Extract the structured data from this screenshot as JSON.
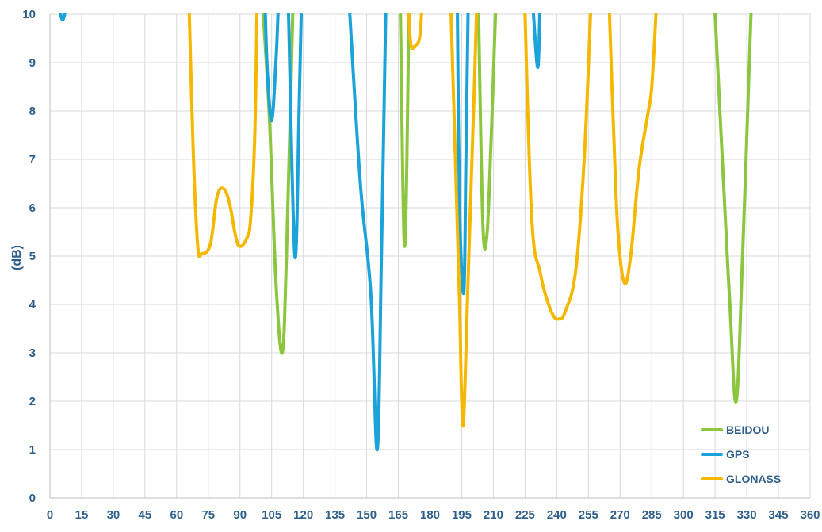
{
  "chart_data": {
    "type": "line",
    "title": "",
    "xlabel": "",
    "ylabel": "(dB)",
    "xlim": [
      0,
      360
    ],
    "ylim": [
      0,
      10
    ],
    "x_ticks": [
      0,
      15,
      30,
      45,
      60,
      75,
      90,
      105,
      120,
      135,
      150,
      165,
      180,
      195,
      210,
      225,
      240,
      255,
      270,
      285,
      300,
      315,
      330,
      345,
      360
    ],
    "y_ticks": [
      0,
      1,
      2,
      3,
      4,
      5,
      6,
      7,
      8,
      9,
      10
    ],
    "grid": true,
    "legend_position": "bottom-right",
    "series": [
      {
        "name": "BEIDOU",
        "color": "#8cc63f",
        "segments": [
          [
            [
              101,
              10
            ],
            [
              104,
              7.8
            ],
            [
              107,
              4.5
            ],
            [
              110,
              3.0
            ],
            [
              112,
              5.0
            ],
            [
              115,
              10
            ]
          ],
          [
            [
              166,
              10
            ],
            [
              168,
              5.2
            ],
            [
              170,
              10
            ]
          ],
          [
            [
              203,
              10
            ],
            [
              205,
              5.7
            ],
            [
              207,
              5.45
            ],
            [
              209,
              7.5
            ],
            [
              211,
              10
            ]
          ],
          [
            [
              315,
              10
            ],
            [
              319,
              6.5
            ],
            [
              322,
              4.0
            ],
            [
              325,
              2.0
            ],
            [
              328,
              5.0
            ],
            [
              332,
              10
            ]
          ]
        ]
      },
      {
        "name": "GPS",
        "color": "#1aa3d9",
        "segments": [
          [
            [
              5,
              10
            ],
            [
              6,
              9.88
            ],
            [
              7,
              10
            ]
          ],
          [
            [
              102,
              10
            ],
            [
              103,
              8.8
            ],
            [
              105,
              7.8
            ],
            [
              107,
              9.0
            ],
            [
              108,
              10
            ]
          ],
          [
            [
              113,
              10
            ],
            [
              116,
              5.0
            ],
            [
              118,
              8.0
            ],
            [
              119,
              10
            ]
          ],
          [
            [
              142,
              10
            ],
            [
              147,
              6.5
            ],
            [
              152,
              4.2
            ],
            [
              155,
              1.0
            ],
            [
              157,
              5.0
            ],
            [
              159,
              10
            ]
          ],
          [
            [
              193,
              10
            ],
            [
              194,
              6.0
            ],
            [
              196,
              4.25
            ],
            [
              197,
              7.0
            ],
            [
              198,
              10
            ]
          ],
          [
            [
              229,
              10
            ],
            [
              231,
              8.9
            ],
            [
              232,
              10
            ]
          ]
        ]
      },
      {
        "name": "GLONASS",
        "color": "#f5b800",
        "segments": [
          [
            [
              66,
              10
            ],
            [
              68,
              7.0
            ],
            [
              70,
              5.2
            ],
            [
              72,
              5.05
            ],
            [
              76,
              5.25
            ],
            [
              79,
              6.2
            ],
            [
              82,
              6.4
            ],
            [
              85,
              6.1
            ],
            [
              88,
              5.4
            ],
            [
              90,
              5.2
            ],
            [
              93,
              5.35
            ],
            [
              95,
              5.75
            ],
            [
              97,
              7.5
            ],
            [
              98,
              10
            ]
          ],
          [
            [
              170,
              10
            ],
            [
              171,
              9.35
            ],
            [
              173,
              9.35
            ],
            [
              175,
              9.5
            ],
            [
              176,
              10
            ]
          ],
          [
            [
              190,
              10
            ],
            [
              192,
              7.0
            ],
            [
              194,
              4.0
            ],
            [
              195,
              2.0
            ],
            [
              196,
              1.7
            ],
            [
              198,
              4.5
            ],
            [
              201,
              8.5
            ],
            [
              202,
              10
            ]
          ],
          [
            [
              225,
              10
            ],
            [
              227,
              7.0
            ],
            [
              229,
              5.3
            ],
            [
              232,
              4.7
            ],
            [
              234,
              4.3
            ],
            [
              238,
              3.8
            ],
            [
              241,
              3.7
            ],
            [
              244,
              3.85
            ],
            [
              249,
              4.7
            ],
            [
              253,
              7.0
            ],
            [
              256,
              10
            ]
          ],
          [
            [
              265,
              10
            ],
            [
              267,
              7.5
            ],
            [
              269,
              5.5
            ],
            [
              272,
              4.45
            ],
            [
              275,
              5.0
            ],
            [
              279,
              6.8
            ],
            [
              283,
              7.9
            ],
            [
              285,
              8.5
            ],
            [
              287,
              10
            ]
          ]
        ]
      }
    ]
  }
}
